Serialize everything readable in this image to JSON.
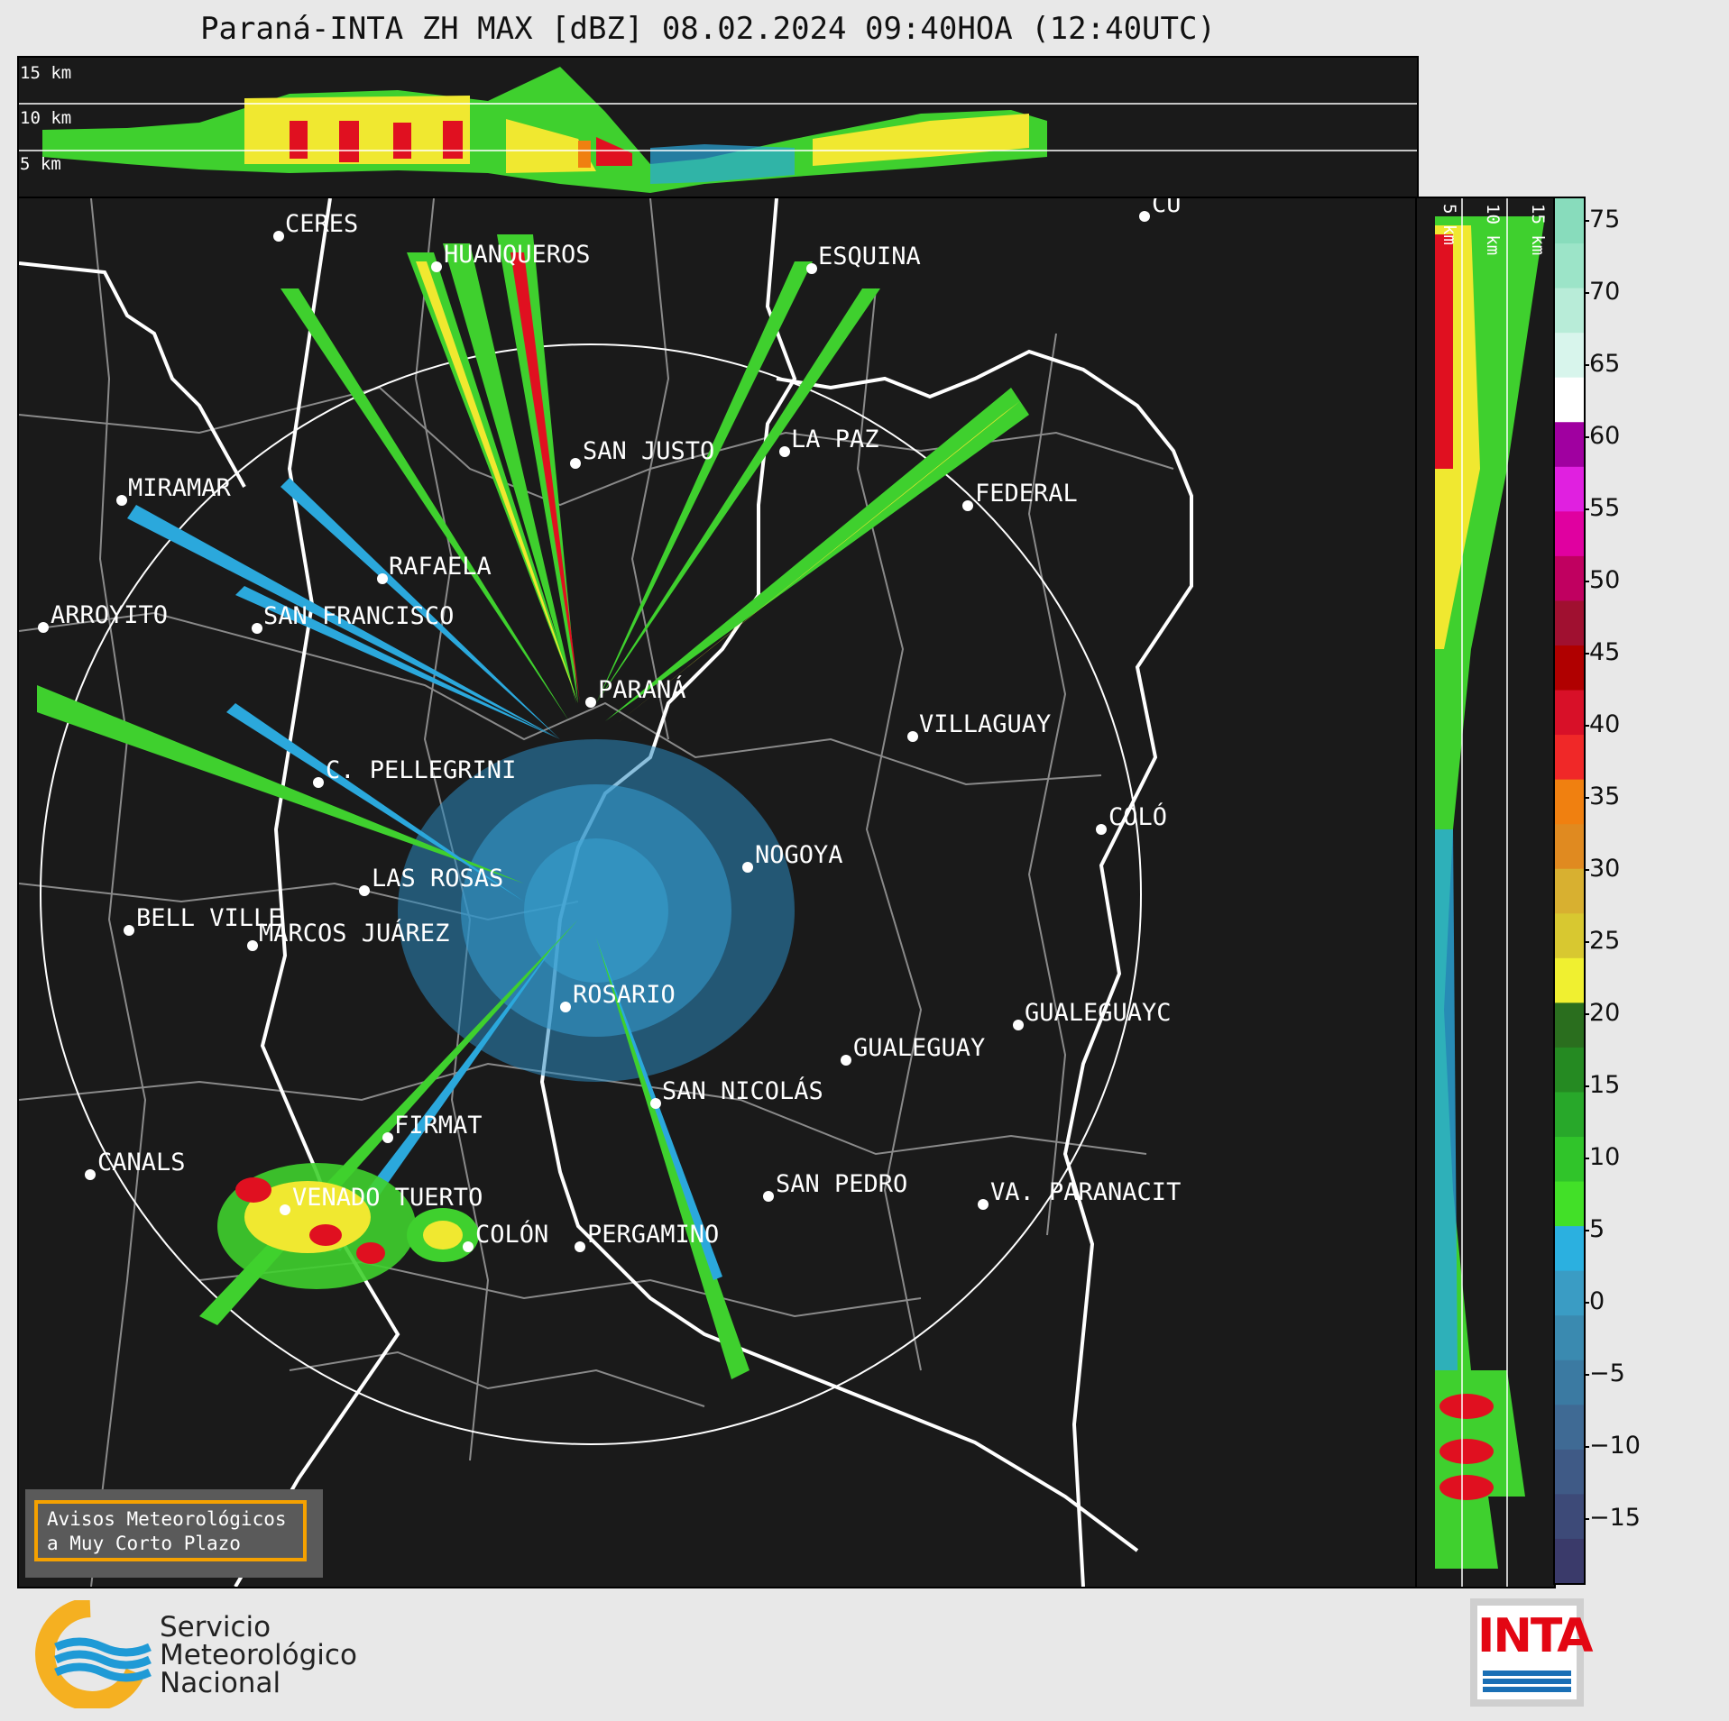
{
  "title": "Paraná-INTA ZH MAX [dBZ] 08.02.2024 09:40HOA (12:40UTC)",
  "top_panel": {
    "height_labels": [
      "15 km",
      "10 km",
      "5 km"
    ]
  },
  "right_panel": {
    "height_labels": [
      "5 km",
      "10 km",
      "15 km"
    ]
  },
  "colorbar": {
    "unit": "dBZ",
    "ticks": [
      "75",
      "70",
      "65",
      "60",
      "55",
      "50",
      "45",
      "40",
      "35",
      "30",
      "25",
      "20",
      "15",
      "10",
      "5",
      "0",
      "−5",
      "−10",
      "−15"
    ],
    "colors": [
      "#3a3a6a",
      "#3d4a78",
      "#3f5a86",
      "#3f6a94",
      "#3b7aa2",
      "#3a8ab0",
      "#3a9cc4",
      "#2bb0e0",
      "#42e028",
      "#30c42a",
      "#28a82a",
      "#258a22",
      "#2a6e1e",
      "#f0f030",
      "#d8c830",
      "#d8b030",
      "#e08a20",
      "#f08010",
      "#f02828",
      "#d81028",
      "#b00000",
      "#a01030",
      "#c00060",
      "#e000a0",
      "#e020e0",
      "#a000a0",
      "#ffffff",
      "#d8f5ec",
      "#b8ecd8",
      "#9ce4c8",
      "#88dcbc"
    ]
  },
  "cities": [
    {
      "name": "CERES"
    },
    {
      "name": "HUANQUEROS"
    },
    {
      "name": "ESQUINA"
    },
    {
      "name": "CU"
    },
    {
      "name": "SAN JUSTO"
    },
    {
      "name": "LA PAZ"
    },
    {
      "name": "MIRAMAR"
    },
    {
      "name": "FEDERAL"
    },
    {
      "name": "RAFAELA"
    },
    {
      "name": "ARROYITO"
    },
    {
      "name": "SAN FRANCISCO"
    },
    {
      "name": "PARANÁ"
    },
    {
      "name": "VILLAGUAY"
    },
    {
      "name": "C. PELLEGRINI"
    },
    {
      "name": "COLÓ"
    },
    {
      "name": "NOGOYA"
    },
    {
      "name": "LAS ROSAS"
    },
    {
      "name": "BELL VILLE"
    },
    {
      "name": "MARCOS JUÁREZ"
    },
    {
      "name": "ROSARIO"
    },
    {
      "name": "GUALEGUAYC"
    },
    {
      "name": "GUALEGUAY"
    },
    {
      "name": "SAN NICOLÁS"
    },
    {
      "name": "FIRMAT"
    },
    {
      "name": "CANALS"
    },
    {
      "name": "SAN PEDRO"
    },
    {
      "name": "VENADO TUERTO"
    },
    {
      "name": "VA. PARANACIT"
    },
    {
      "name": "COLÓN"
    },
    {
      "name": "PERGAMINO"
    }
  ],
  "badge": {
    "line1": "Avisos Meteorológicos",
    "line2": "a Muy Corto Plazo"
  },
  "smn": {
    "line1": "Servicio",
    "line2": "Meteorológico",
    "line3": "Nacional"
  },
  "inta": {
    "text": "INTA",
    "color": "#e30613"
  }
}
